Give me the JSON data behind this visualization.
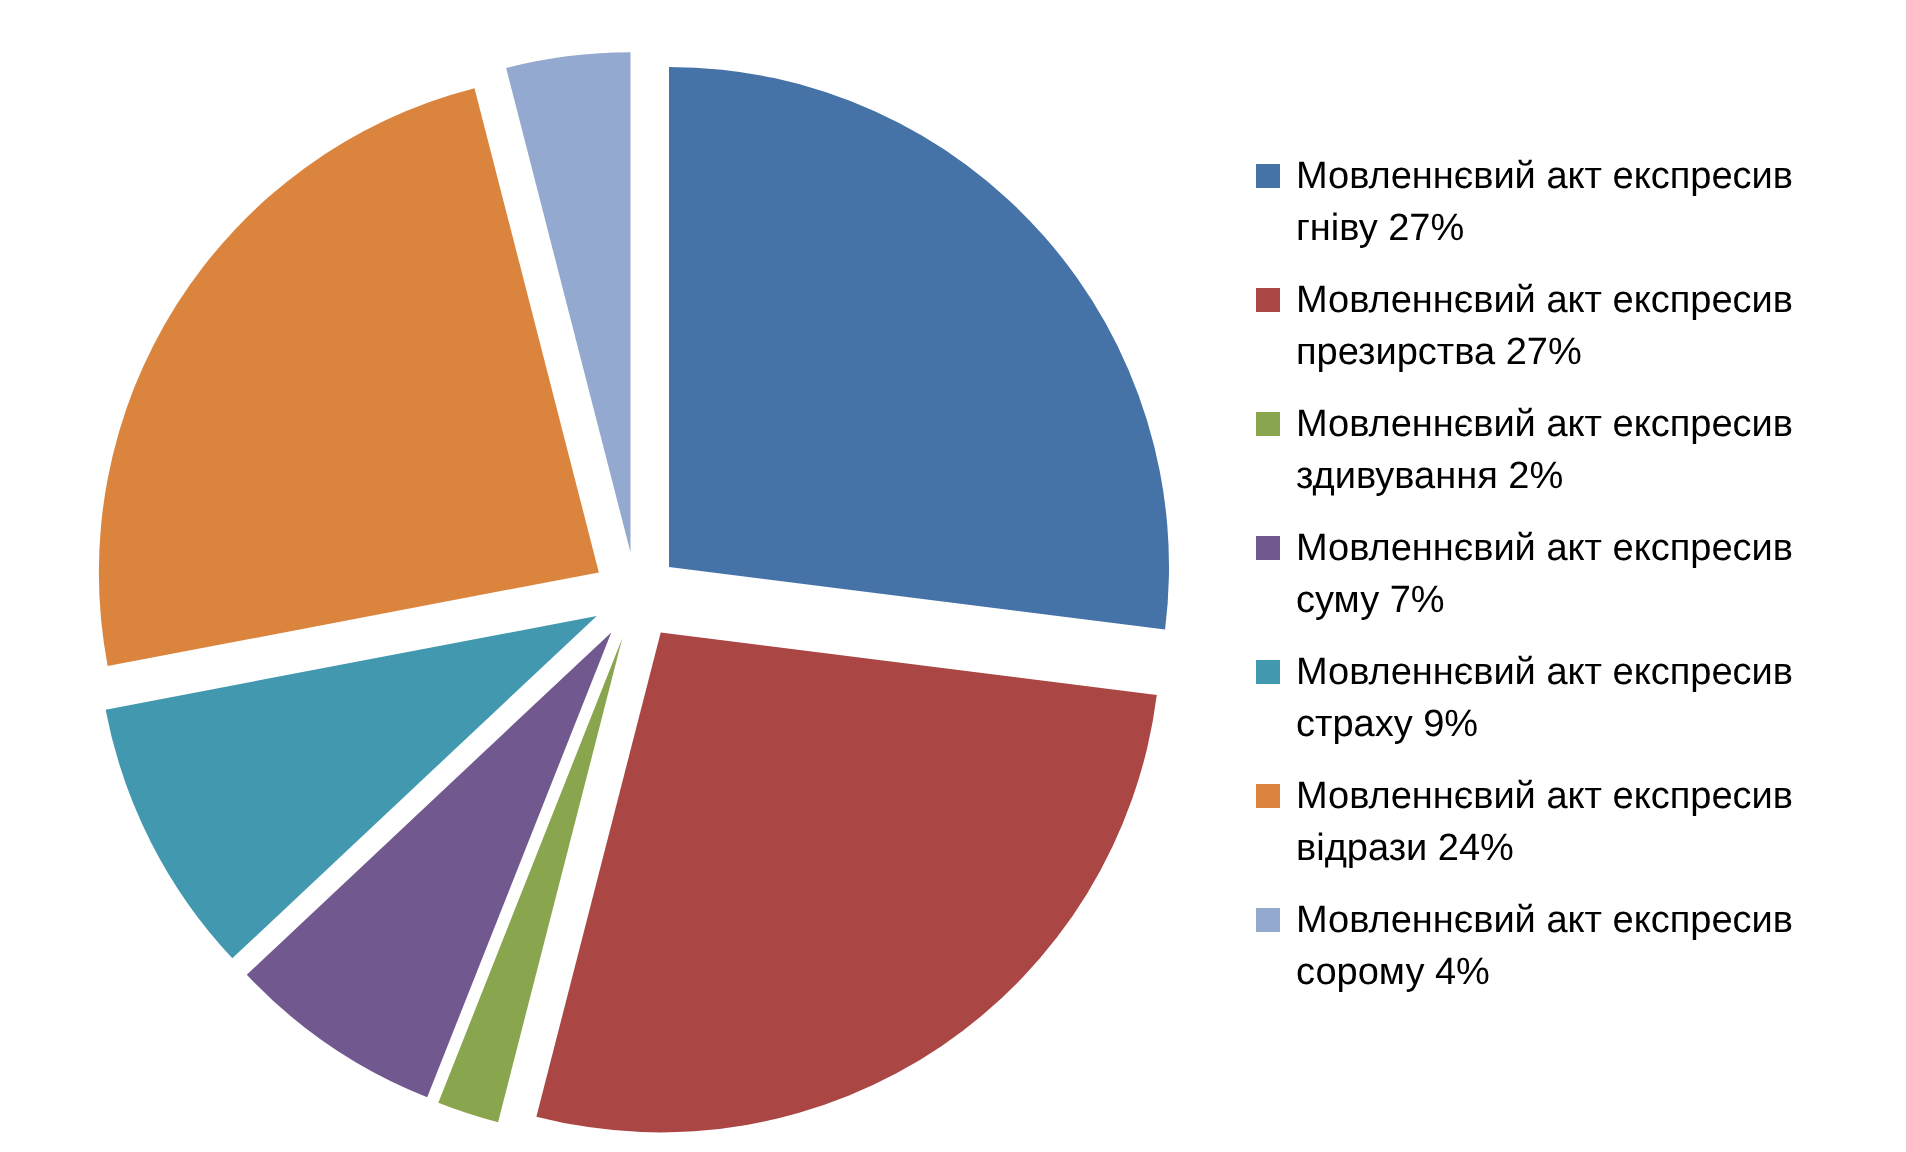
{
  "chart_data": {
    "type": "pie",
    "categories": [
      "Мовленнєвий акт експресив гніву 27%",
      "Мовленнєвий акт експресив презирства 27%",
      "Мовленнєвий акт експресив здивування 2%",
      "Мовленнєвий акт експресив суму 7%",
      "Мовленнєвий акт експресив страху 9%",
      "Мовленнєвий акт експресив відрази 24%",
      "Мовленнєвий акт експресив сорому 4%"
    ],
    "values": [
      27,
      27,
      2,
      7,
      9,
      24,
      4
    ],
    "colors": [
      "#4572a7",
      "#aa4643",
      "#89a54e",
      "#71588f",
      "#4198af",
      "#db843d",
      "#93a9cf"
    ],
    "legend": "right"
  }
}
